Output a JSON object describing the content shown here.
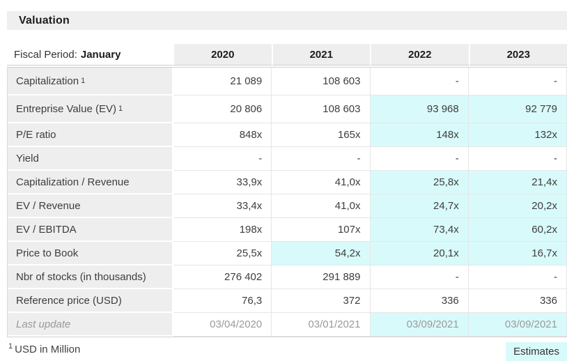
{
  "section": {
    "title": "Valuation"
  },
  "legend": {
    "estimate_bg_color": "#d9fafa",
    "label_bg_color": "#eeeeee"
  },
  "table": {
    "fiscal_period_label": "Fiscal Period:",
    "fiscal_period_value": "January",
    "columns": [
      "2020",
      "2021",
      "2022",
      "2023"
    ],
    "rows": [
      {
        "label": "Capitalization",
        "sup": "1",
        "cells": [
          {
            "v": "21 089"
          },
          {
            "v": "108 603"
          },
          {
            "v": "-"
          },
          {
            "v": "-"
          }
        ]
      },
      {
        "label": "Entreprise Value (EV)",
        "sup": "1",
        "cells": [
          {
            "v": "20 806"
          },
          {
            "v": "108 603"
          },
          {
            "v": "93 968",
            "est": true
          },
          {
            "v": "92 779",
            "est": true
          }
        ]
      },
      {
        "label": "P/E ratio",
        "cells": [
          {
            "v": "848x"
          },
          {
            "v": "165x"
          },
          {
            "v": "148x",
            "est": true
          },
          {
            "v": "132x",
            "est": true
          }
        ]
      },
      {
        "label": "Yield",
        "cells": [
          {
            "v": "-"
          },
          {
            "v": "-"
          },
          {
            "v": "-"
          },
          {
            "v": "-"
          }
        ]
      },
      {
        "label": "Capitalization / Revenue",
        "cells": [
          {
            "v": "33,9x"
          },
          {
            "v": "41,0x"
          },
          {
            "v": "25,8x",
            "est": true
          },
          {
            "v": "21,4x",
            "est": true
          }
        ]
      },
      {
        "label": "EV / Revenue",
        "cells": [
          {
            "v": "33,4x"
          },
          {
            "v": "41,0x"
          },
          {
            "v": "24,7x",
            "est": true
          },
          {
            "v": "20,2x",
            "est": true
          }
        ]
      },
      {
        "label": "EV / EBITDA",
        "cells": [
          {
            "v": "198x"
          },
          {
            "v": "107x"
          },
          {
            "v": "73,4x",
            "est": true
          },
          {
            "v": "60,2x",
            "est": true
          }
        ]
      },
      {
        "label": "Price to Book",
        "cells": [
          {
            "v": "25,5x"
          },
          {
            "v": "54,2x",
            "est": true
          },
          {
            "v": "20,1x",
            "est": true
          },
          {
            "v": "16,7x",
            "est": true
          }
        ]
      },
      {
        "label": "Nbr of stocks (in thousands)",
        "cells": [
          {
            "v": "276 402"
          },
          {
            "v": "291 889"
          },
          {
            "v": "-"
          },
          {
            "v": "-"
          }
        ]
      },
      {
        "label": "Reference price (USD)",
        "cells": [
          {
            "v": "76,3"
          },
          {
            "v": "372"
          },
          {
            "v": "336"
          },
          {
            "v": "336"
          }
        ]
      },
      {
        "label": "Last update",
        "muted": true,
        "cells": [
          {
            "v": "03/04/2020"
          },
          {
            "v": "03/01/2021"
          },
          {
            "v": "03/09/2021",
            "est": true
          },
          {
            "v": "03/09/2021",
            "est": true
          }
        ]
      }
    ]
  },
  "footer": {
    "footnote_marker": "1",
    "footnote_text": "USD in Million",
    "estimates_label": "Estimates"
  }
}
